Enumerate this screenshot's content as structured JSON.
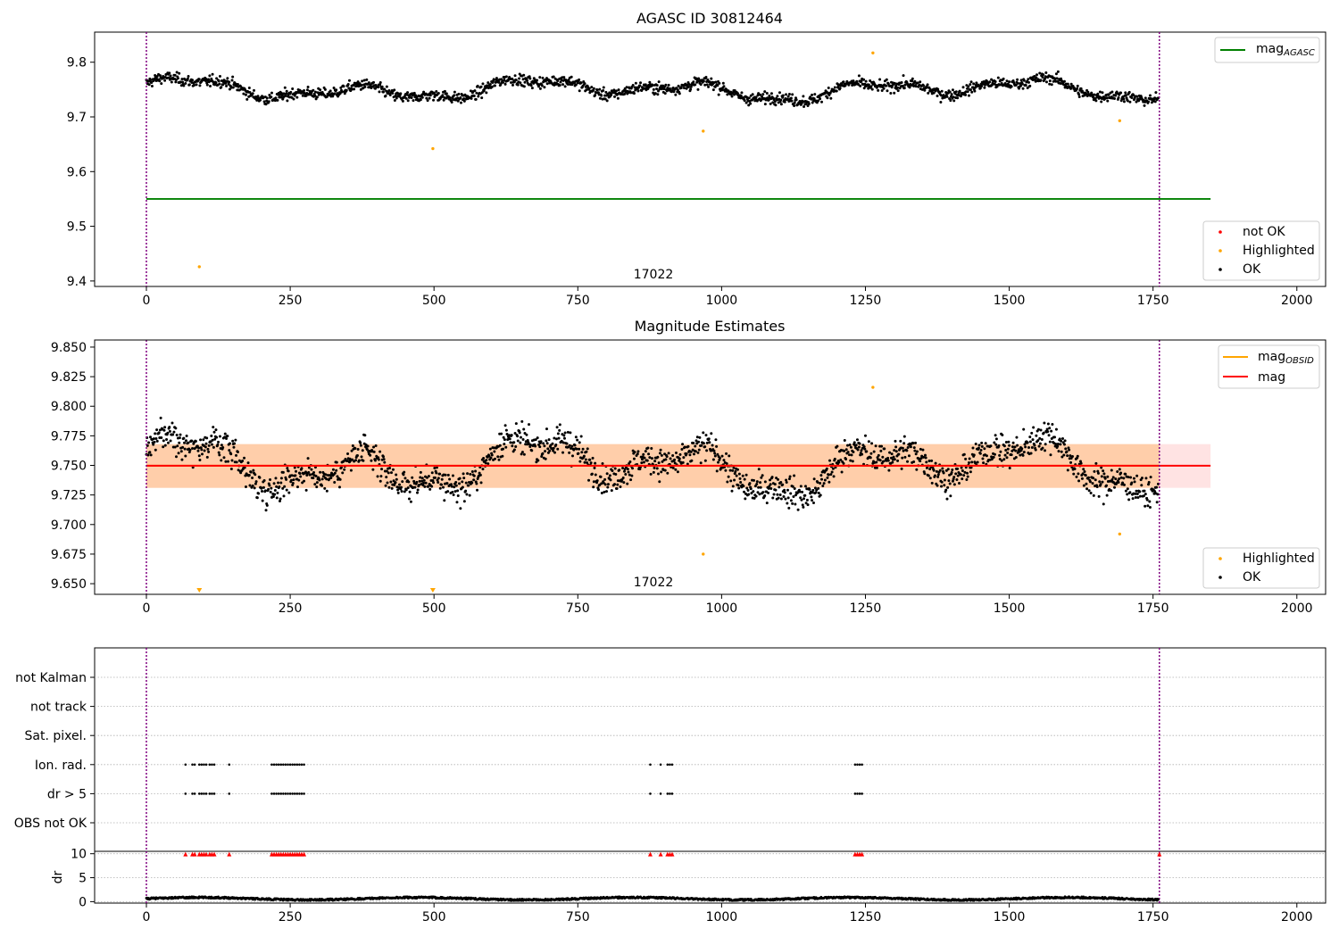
{
  "chart_data": [
    {
      "type": "scatter",
      "title": "AGASC ID 30812464",
      "xlabel": "",
      "ylabel": "",
      "xlim": [
        -90,
        2050
      ],
      "ylim": [
        9.39,
        9.855
      ],
      "xticks": [
        0,
        250,
        500,
        750,
        1000,
        1250,
        1500,
        1750,
        2000
      ],
      "yticks": [
        9.4,
        9.5,
        9.6,
        9.7,
        9.8
      ],
      "ytick_labels": [
        "9.4",
        "9.5",
        "9.6",
        "9.7",
        "9.8"
      ],
      "vlines": [
        0,
        1761
      ],
      "obsid_label": {
        "text": "17022",
        "x": 880
      },
      "lines": [
        {
          "name": "mag_AGASC",
          "legend_main": "mag",
          "legend_sub": "AGASC",
          "y": 9.55,
          "x": [
            0,
            1850
          ],
          "color": "#008000"
        }
      ],
      "series": [
        {
          "name": "not OK",
          "color": "#ff0000",
          "points": []
        },
        {
          "name": "Highlighted",
          "color": "#ffa500",
          "points": [
            [
              92,
              9.426
            ],
            [
              498,
              9.642
            ],
            [
              968,
              9.674
            ],
            [
              1263,
              9.817
            ],
            [
              1692,
              9.693
            ]
          ]
        },
        {
          "name": "OK",
          "color": "#000000",
          "n": 1760,
          "mean": 9.75,
          "noise": 0.013
        }
      ],
      "legend_lines_position": "upper right",
      "legend_points_position": "lower right"
    },
    {
      "type": "scatter",
      "title": "Magnitude Estimates",
      "xlabel": "",
      "ylabel": "",
      "xlim": [
        -90,
        2050
      ],
      "ylim": [
        9.641,
        9.856
      ],
      "xticks": [
        0,
        250,
        500,
        750,
        1000,
        1250,
        1500,
        1750,
        2000
      ],
      "yticks": [
        9.65,
        9.675,
        9.7,
        9.725,
        9.75,
        9.775,
        9.8,
        9.825,
        9.85
      ],
      "ytick_labels": [
        "9.650",
        "9.675",
        "9.700",
        "9.725",
        "9.750",
        "9.775",
        "9.800",
        "9.825",
        "9.850"
      ],
      "vlines": [
        0,
        1761
      ],
      "obsid_label": {
        "text": "17022",
        "x": 880
      },
      "bands": [
        {
          "x": [
            0,
            1761
          ],
          "y": [
            9.731,
            9.768
          ],
          "color": "#ffa500",
          "opacity": 0.25
        },
        {
          "x": [
            0,
            1850
          ],
          "y": [
            9.731,
            9.768
          ],
          "color": "#ff0000",
          "opacity": 0.11
        }
      ],
      "lines": [
        {
          "name": "mag_OBSID",
          "legend_main": "mag",
          "legend_sub": "OBSID",
          "y": 9.7497,
          "x": [
            0,
            1761
          ],
          "color": "#ffa500"
        },
        {
          "name": "mag",
          "legend_main": "mag",
          "legend_sub": "",
          "y": 9.7497,
          "x": [
            0,
            1850
          ],
          "color": "#ff0000"
        }
      ],
      "series": [
        {
          "name": "Highlighted",
          "color": "#ffa500",
          "points": [
            [
              968,
              9.675
            ],
            [
              1263,
              9.816
            ],
            [
              1692,
              9.692
            ]
          ],
          "below_axis_markers": [
            92,
            498
          ]
        },
        {
          "name": "OK",
          "color": "#000000",
          "n": 1760,
          "mean": 9.75,
          "noise": 0.016
        }
      ],
      "legend_lines_position": "upper right",
      "legend_points_position": "lower right"
    },
    {
      "type": "scatter",
      "title": "",
      "xlim": [
        -90,
        2050
      ],
      "xticks": [
        0,
        250,
        500,
        750,
        1000,
        1250,
        1500,
        1750,
        2000
      ],
      "vlines": [
        0,
        1761
      ],
      "flag_rows": [
        "not Kalman",
        "not track",
        "Sat. pixel.",
        "Ion. rad.",
        "dr > 5",
        "OBS not OK"
      ],
      "flag_points": {
        "Ion. rad.": [
          68,
          80,
          84,
          92,
          96,
          100,
          104,
          110,
          114,
          118,
          144,
          218,
          222,
          226,
          230,
          234,
          238,
          242,
          246,
          250,
          254,
          258,
          262,
          266,
          270,
          274,
          876,
          894,
          906,
          910,
          914,
          1232,
          1236,
          1240,
          1244
        ],
        "dr > 5": [
          68,
          80,
          84,
          92,
          96,
          100,
          104,
          110,
          114,
          118,
          144,
          218,
          222,
          226,
          230,
          234,
          238,
          242,
          246,
          250,
          254,
          258,
          262,
          266,
          270,
          274,
          876,
          894,
          906,
          910,
          914,
          1232,
          1236,
          1240,
          1244
        ]
      },
      "dr_panel": {
        "ylabel": "dr",
        "ylim": [
          -0.3,
          10.5
        ],
        "yticks": [
          0,
          5,
          10
        ],
        "ytick_labels": [
          "0",
          "5",
          "10"
        ],
        "clipped_markers": [
          68,
          80,
          84,
          92,
          96,
          100,
          104,
          110,
          114,
          118,
          144,
          218,
          222,
          226,
          230,
          234,
          238,
          242,
          246,
          250,
          254,
          258,
          262,
          266,
          270,
          274,
          876,
          894,
          906,
          910,
          914,
          1232,
          1236,
          1240,
          1244,
          1761
        ],
        "series": [
          {
            "name": "dr",
            "color": "#000000",
            "n": 1760,
            "mean": 0.45
          }
        ]
      }
    }
  ]
}
